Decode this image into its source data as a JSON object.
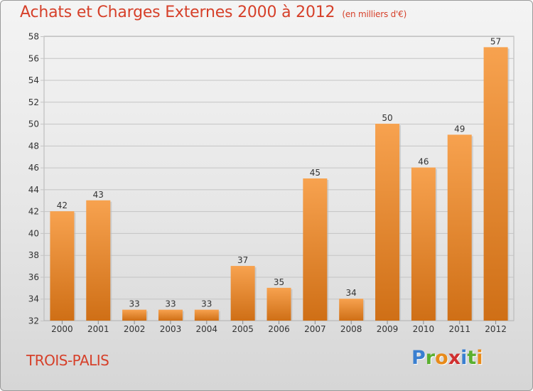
{
  "header": {
    "title": "Achats et Charges Externes 2000 à 2012",
    "unit": "(en milliers d'€)"
  },
  "footer": {
    "commune": "TROIS-PALIS",
    "logo_letters": [
      "P",
      "r",
      "o",
      "x",
      "i",
      "t",
      "i"
    ]
  },
  "colors": {
    "bar_top": "#f7a24f",
    "bar_bottom": "#cf6f16",
    "title": "#d6402a",
    "logo": [
      "#3a7fd0",
      "#5bb030",
      "#e88b1a",
      "#d03030",
      "#3a7fd0",
      "#5bb030",
      "#e88b1a"
    ]
  },
  "chart_data": {
    "type": "bar",
    "title": "Achats et Charges Externes 2000 à 2012",
    "subtitle": "(en milliers d'€)",
    "categories": [
      "2000",
      "2001",
      "2002",
      "2003",
      "2004",
      "2005",
      "2006",
      "2007",
      "2008",
      "2009",
      "2010",
      "2011",
      "2012"
    ],
    "values": [
      42,
      43,
      33,
      33,
      33,
      37,
      35,
      45,
      34,
      50,
      46,
      49,
      57
    ],
    "ylim": [
      32,
      58
    ],
    "yticks": [
      32,
      34,
      36,
      38,
      40,
      42,
      44,
      46,
      48,
      50,
      52,
      54,
      56,
      58
    ],
    "grid": true,
    "data_labels": true
  }
}
